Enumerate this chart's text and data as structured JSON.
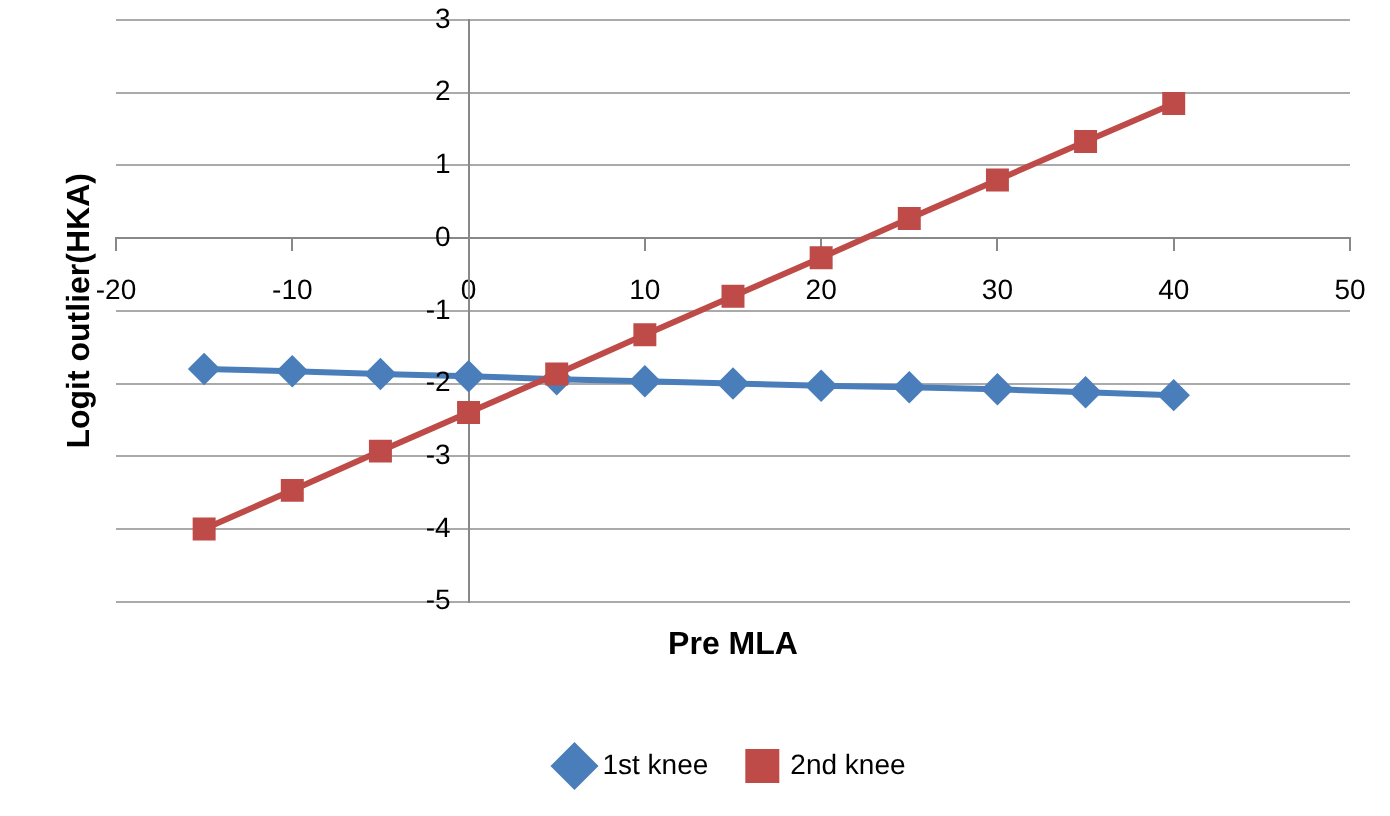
{
  "chart_data": {
    "type": "line",
    "xlabel": "Pre MLA",
    "ylabel": "Logit outlier(HKA)",
    "x": [
      -15,
      -10,
      -5,
      0,
      5,
      10,
      15,
      20,
      25,
      30,
      35,
      40
    ],
    "series": [
      {
        "name": "1st knee",
        "color": "#4a7ebb",
        "marker": "diamond",
        "values": [
          -1.8,
          -1.83,
          -1.87,
          -1.9,
          -1.94,
          -1.97,
          -2.0,
          -2.03,
          -2.05,
          -2.08,
          -2.12,
          -2.16
        ]
      },
      {
        "name": "2nd knee",
        "color": "#be4b48",
        "marker": "square",
        "values": [
          -4.0,
          -3.47,
          -2.93,
          -2.4,
          -1.87,
          -1.33,
          -0.8,
          -0.27,
          0.27,
          0.8,
          1.33,
          1.85
        ]
      }
    ],
    "xlim": [
      -20,
      50
    ],
    "xticks": [
      -20,
      -10,
      0,
      10,
      20,
      30,
      40,
      50
    ],
    "ylim": [
      -5,
      3
    ],
    "yticks": [
      -5,
      -4,
      -3,
      -2,
      -1,
      0,
      1,
      2,
      3
    ],
    "grid": "y",
    "legend": "bottom"
  }
}
